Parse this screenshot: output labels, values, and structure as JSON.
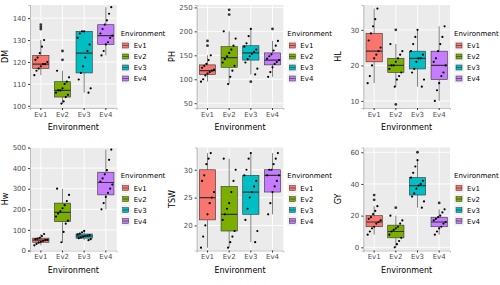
{
  "chart_data": [
    {
      "type": "box",
      "y_label": "DM",
      "x_label": "Environment",
      "legend_title": "Environment",
      "legend": "right",
      "grid": true,
      "categories": [
        "Ev1",
        "Ev2",
        "Ev3",
        "Ev4"
      ],
      "colors": [
        "#F8766D",
        "#7CAE00",
        "#00BFC4",
        "#C77CFF"
      ],
      "ylim": [
        99,
        146
      ],
      "yticks": [
        100,
        110,
        120,
        130,
        140
      ],
      "boxes": [
        {
          "whisker_low": 114,
          "q1": 117,
          "median": 119,
          "q3": 123,
          "whisker_high": 130,
          "outliers": [
            135,
            136,
            137
          ],
          "points": [
            114,
            116,
            117,
            118,
            119,
            119,
            120,
            121,
            122,
            124,
            127,
            130
          ]
        },
        {
          "whisker_low": 101,
          "q1": 104,
          "median": 107,
          "q3": 111,
          "whisker_high": 116,
          "outliers": [
            121,
            125
          ],
          "points": [
            101,
            102,
            104,
            105,
            106,
            107,
            107,
            108,
            110,
            111,
            113,
            116
          ]
        },
        {
          "whisker_low": 106,
          "q1": 115,
          "median": 124,
          "q3": 134,
          "whisker_high": 134,
          "outliers": [],
          "points": [
            106,
            108,
            112,
            115,
            118,
            122,
            125,
            128,
            131,
            133,
            134,
            134
          ]
        },
        {
          "whisker_low": 123,
          "q1": 128,
          "median": 132,
          "q3": 137,
          "whisker_high": 145,
          "outliers": [],
          "points": [
            123,
            125,
            128,
            129,
            131,
            132,
            133,
            135,
            137,
            139,
            142,
            145
          ]
        }
      ]
    },
    {
      "type": "box",
      "y_label": "PH",
      "x_label": "Environment",
      "legend_title": "Environment",
      "legend": "right",
      "grid": true,
      "categories": [
        "Ev1",
        "Ev2",
        "Ev3",
        "Ev4"
      ],
      "colors": [
        "#F8766D",
        "#7CAE00",
        "#00BFC4",
        "#C77CFF"
      ],
      "ylim": [
        40,
        255
      ],
      "yticks": [
        50,
        100,
        150,
        200,
        250
      ],
      "boxes": [
        {
          "whisker_low": 95,
          "q1": 110,
          "median": 118,
          "q3": 130,
          "whisker_high": 150,
          "outliers": [
            170,
            180
          ],
          "points": [
            95,
            100,
            108,
            112,
            115,
            118,
            120,
            124,
            128,
            132,
            140,
            150
          ]
        },
        {
          "whisker_low": 90,
          "q1": 125,
          "median": 145,
          "q3": 168,
          "whisker_high": 200,
          "outliers": [
            235,
            245
          ],
          "points": [
            90,
            105,
            118,
            128,
            135,
            142,
            148,
            155,
            162,
            170,
            185,
            200
          ]
        },
        {
          "whisker_low": 110,
          "q1": 140,
          "median": 155,
          "q3": 170,
          "whisker_high": 205,
          "outliers": [
            95
          ],
          "points": [
            110,
            122,
            135,
            142,
            148,
            153,
            157,
            162,
            168,
            175,
            190,
            205
          ]
        },
        {
          "whisker_low": 105,
          "q1": 130,
          "median": 140,
          "q3": 155,
          "whisker_high": 180,
          "outliers": [
            205
          ],
          "points": [
            105,
            115,
            125,
            132,
            136,
            140,
            143,
            148,
            152,
            160,
            170,
            180
          ]
        }
      ]
    },
    {
      "type": "box",
      "y_label": "HL",
      "x_label": "Environment",
      "legend_title": "Environment",
      "legend": "right",
      "grid": true,
      "categories": [
        "Ev1",
        "Ev2",
        "Ev3",
        "Ev4"
      ],
      "colors": [
        "#F8766D",
        "#7CAE00",
        "#00BFC4",
        "#C77CFF"
      ],
      "ylim": [
        8,
        37
      ],
      "yticks": [
        10,
        20,
        30
      ],
      "boxes": [
        {
          "whisker_low": 15,
          "q1": 21,
          "median": 24,
          "q3": 29,
          "whisker_high": 36,
          "outliers": [],
          "points": [
            15,
            17,
            20,
            22,
            23,
            24,
            25,
            27,
            29,
            31,
            33,
            36
          ]
        },
        {
          "whisker_low": 14,
          "q1": 18,
          "median": 20,
          "q3": 22,
          "whisker_high": 26,
          "outliers": [
            9,
            30
          ],
          "points": [
            14,
            16,
            17,
            18,
            19,
            20,
            20,
            21,
            22,
            23,
            24,
            26
          ]
        },
        {
          "whisker_low": 14,
          "q1": 19,
          "median": 22,
          "q3": 24,
          "whisker_high": 30,
          "outliers": [],
          "points": [
            14,
            16,
            18,
            19,
            21,
            22,
            22,
            23,
            24,
            26,
            28,
            30
          ]
        },
        {
          "whisker_low": 10,
          "q1": 16,
          "median": 20,
          "q3": 24,
          "whisker_high": 31,
          "outliers": [],
          "points": [
            10,
            13,
            15,
            17,
            18,
            20,
            21,
            22,
            24,
            26,
            28,
            31
          ]
        }
      ]
    },
    {
      "type": "box",
      "y_label": "Hw",
      "x_label": "Environment",
      "legend_title": "Environment",
      "legend": "right",
      "grid": true,
      "categories": [
        "Ev1",
        "Ev2",
        "Ev3",
        "Ev4"
      ],
      "colors": [
        "#F8766D",
        "#7CAE00",
        "#00BFC4",
        "#C77CFF"
      ],
      "ylim": [
        0,
        500
      ],
      "yticks": [
        0,
        100,
        200,
        300,
        400,
        500
      ],
      "boxes": [
        {
          "whisker_low": 25,
          "q1": 40,
          "median": 50,
          "q3": 60,
          "whisker_high": 80,
          "outliers": [],
          "points": [
            25,
            32,
            38,
            42,
            46,
            50,
            52,
            55,
            58,
            62,
            70,
            80
          ]
        },
        {
          "whisker_low": 40,
          "q1": 140,
          "median": 185,
          "q3": 230,
          "whisker_high": 300,
          "outliers": [],
          "points": [
            40,
            90,
            130,
            145,
            165,
            180,
            190,
            205,
            220,
            240,
            270,
            300
          ]
        },
        {
          "whisker_low": 50,
          "q1": 60,
          "median": 70,
          "q3": 80,
          "whisker_high": 95,
          "outliers": [],
          "points": [
            50,
            55,
            60,
            63,
            67,
            70,
            72,
            75,
            78,
            82,
            88,
            95
          ]
        },
        {
          "whisker_low": 200,
          "q1": 270,
          "median": 330,
          "q3": 380,
          "whisker_high": 490,
          "outliers": [],
          "points": [
            200,
            230,
            260,
            280,
            300,
            320,
            335,
            350,
            370,
            390,
            440,
            490
          ]
        }
      ]
    },
    {
      "type": "box",
      "y_label": "TSW",
      "x_label": "Environment",
      "legend_title": "Environment",
      "legend": "right",
      "grid": true,
      "categories": [
        "Ev1",
        "Ev2",
        "Ev3",
        "Ev4"
      ],
      "colors": [
        "#F8766D",
        "#7CAE00",
        "#00BFC4",
        "#C77CFF"
      ],
      "ylim": [
        15.5,
        34
      ],
      "yticks": [
        20,
        25,
        30
      ],
      "boxes": [
        {
          "whisker_low": 16,
          "q1": 21,
          "median": 25,
          "q3": 30,
          "whisker_high": 33,
          "outliers": [],
          "points": [
            16,
            18,
            20,
            22,
            24,
            25,
            26,
            28,
            29,
            31,
            32,
            33
          ]
        },
        {
          "whisker_low": 16,
          "q1": 19,
          "median": 22,
          "q3": 27,
          "whisker_high": 32,
          "outliers": [],
          "points": [
            16,
            17,
            18,
            19,
            21,
            22,
            23,
            24,
            26,
            28,
            30,
            32
          ]
        },
        {
          "whisker_low": 17,
          "q1": 22,
          "median": 26,
          "q3": 29,
          "whisker_high": 33,
          "outliers": [],
          "points": [
            17,
            19,
            21,
            23,
            25,
            26,
            27,
            28,
            29,
            30,
            32,
            33
          ]
        },
        {
          "whisker_low": 22,
          "q1": 26,
          "median": 29,
          "q3": 30,
          "whisker_high": 33,
          "outliers": [],
          "points": [
            22,
            24,
            26,
            27,
            28,
            29,
            29,
            30,
            30,
            31,
            32,
            33
          ]
        }
      ]
    },
    {
      "type": "box",
      "y_label": "GY",
      "x_label": "Environment",
      "legend_title": "Environment",
      "legend": "right",
      "grid": true,
      "categories": [
        "Ev1",
        "Ev2",
        "Ev3",
        "Ev4"
      ],
      "colors": [
        "#F8766D",
        "#7CAE00",
        "#00BFC4",
        "#C77CFF"
      ],
      "ylim": [
        -2,
        63
      ],
      "yticks": [
        0,
        20,
        40,
        60
      ],
      "boxes": [
        {
          "whisker_low": 8,
          "q1": 13,
          "median": 16,
          "q3": 20,
          "whisker_high": 26,
          "outliers": [
            30,
            33
          ],
          "points": [
            8,
            10,
            12,
            13,
            15,
            16,
            17,
            18,
            19,
            21,
            23,
            26
          ]
        },
        {
          "whisker_low": 0,
          "q1": 6,
          "median": 10,
          "q3": 14,
          "whisker_high": 20,
          "outliers": [
            25
          ],
          "points": [
            0,
            2,
            4,
            6,
            8,
            10,
            11,
            12,
            13,
            15,
            17,
            20
          ]
        },
        {
          "whisker_low": 25,
          "q1": 33,
          "median": 39,
          "q3": 44,
          "whisker_high": 55,
          "outliers": [
            60
          ],
          "points": [
            25,
            29,
            32,
            34,
            37,
            39,
            40,
            42,
            44,
            47,
            51,
            55
          ]
        },
        {
          "whisker_low": 8,
          "q1": 13,
          "median": 16,
          "q3": 19,
          "whisker_high": 24,
          "outliers": [
            28
          ],
          "points": [
            8,
            10,
            12,
            13,
            15,
            16,
            17,
            18,
            19,
            20,
            22,
            24
          ]
        }
      ]
    }
  ]
}
